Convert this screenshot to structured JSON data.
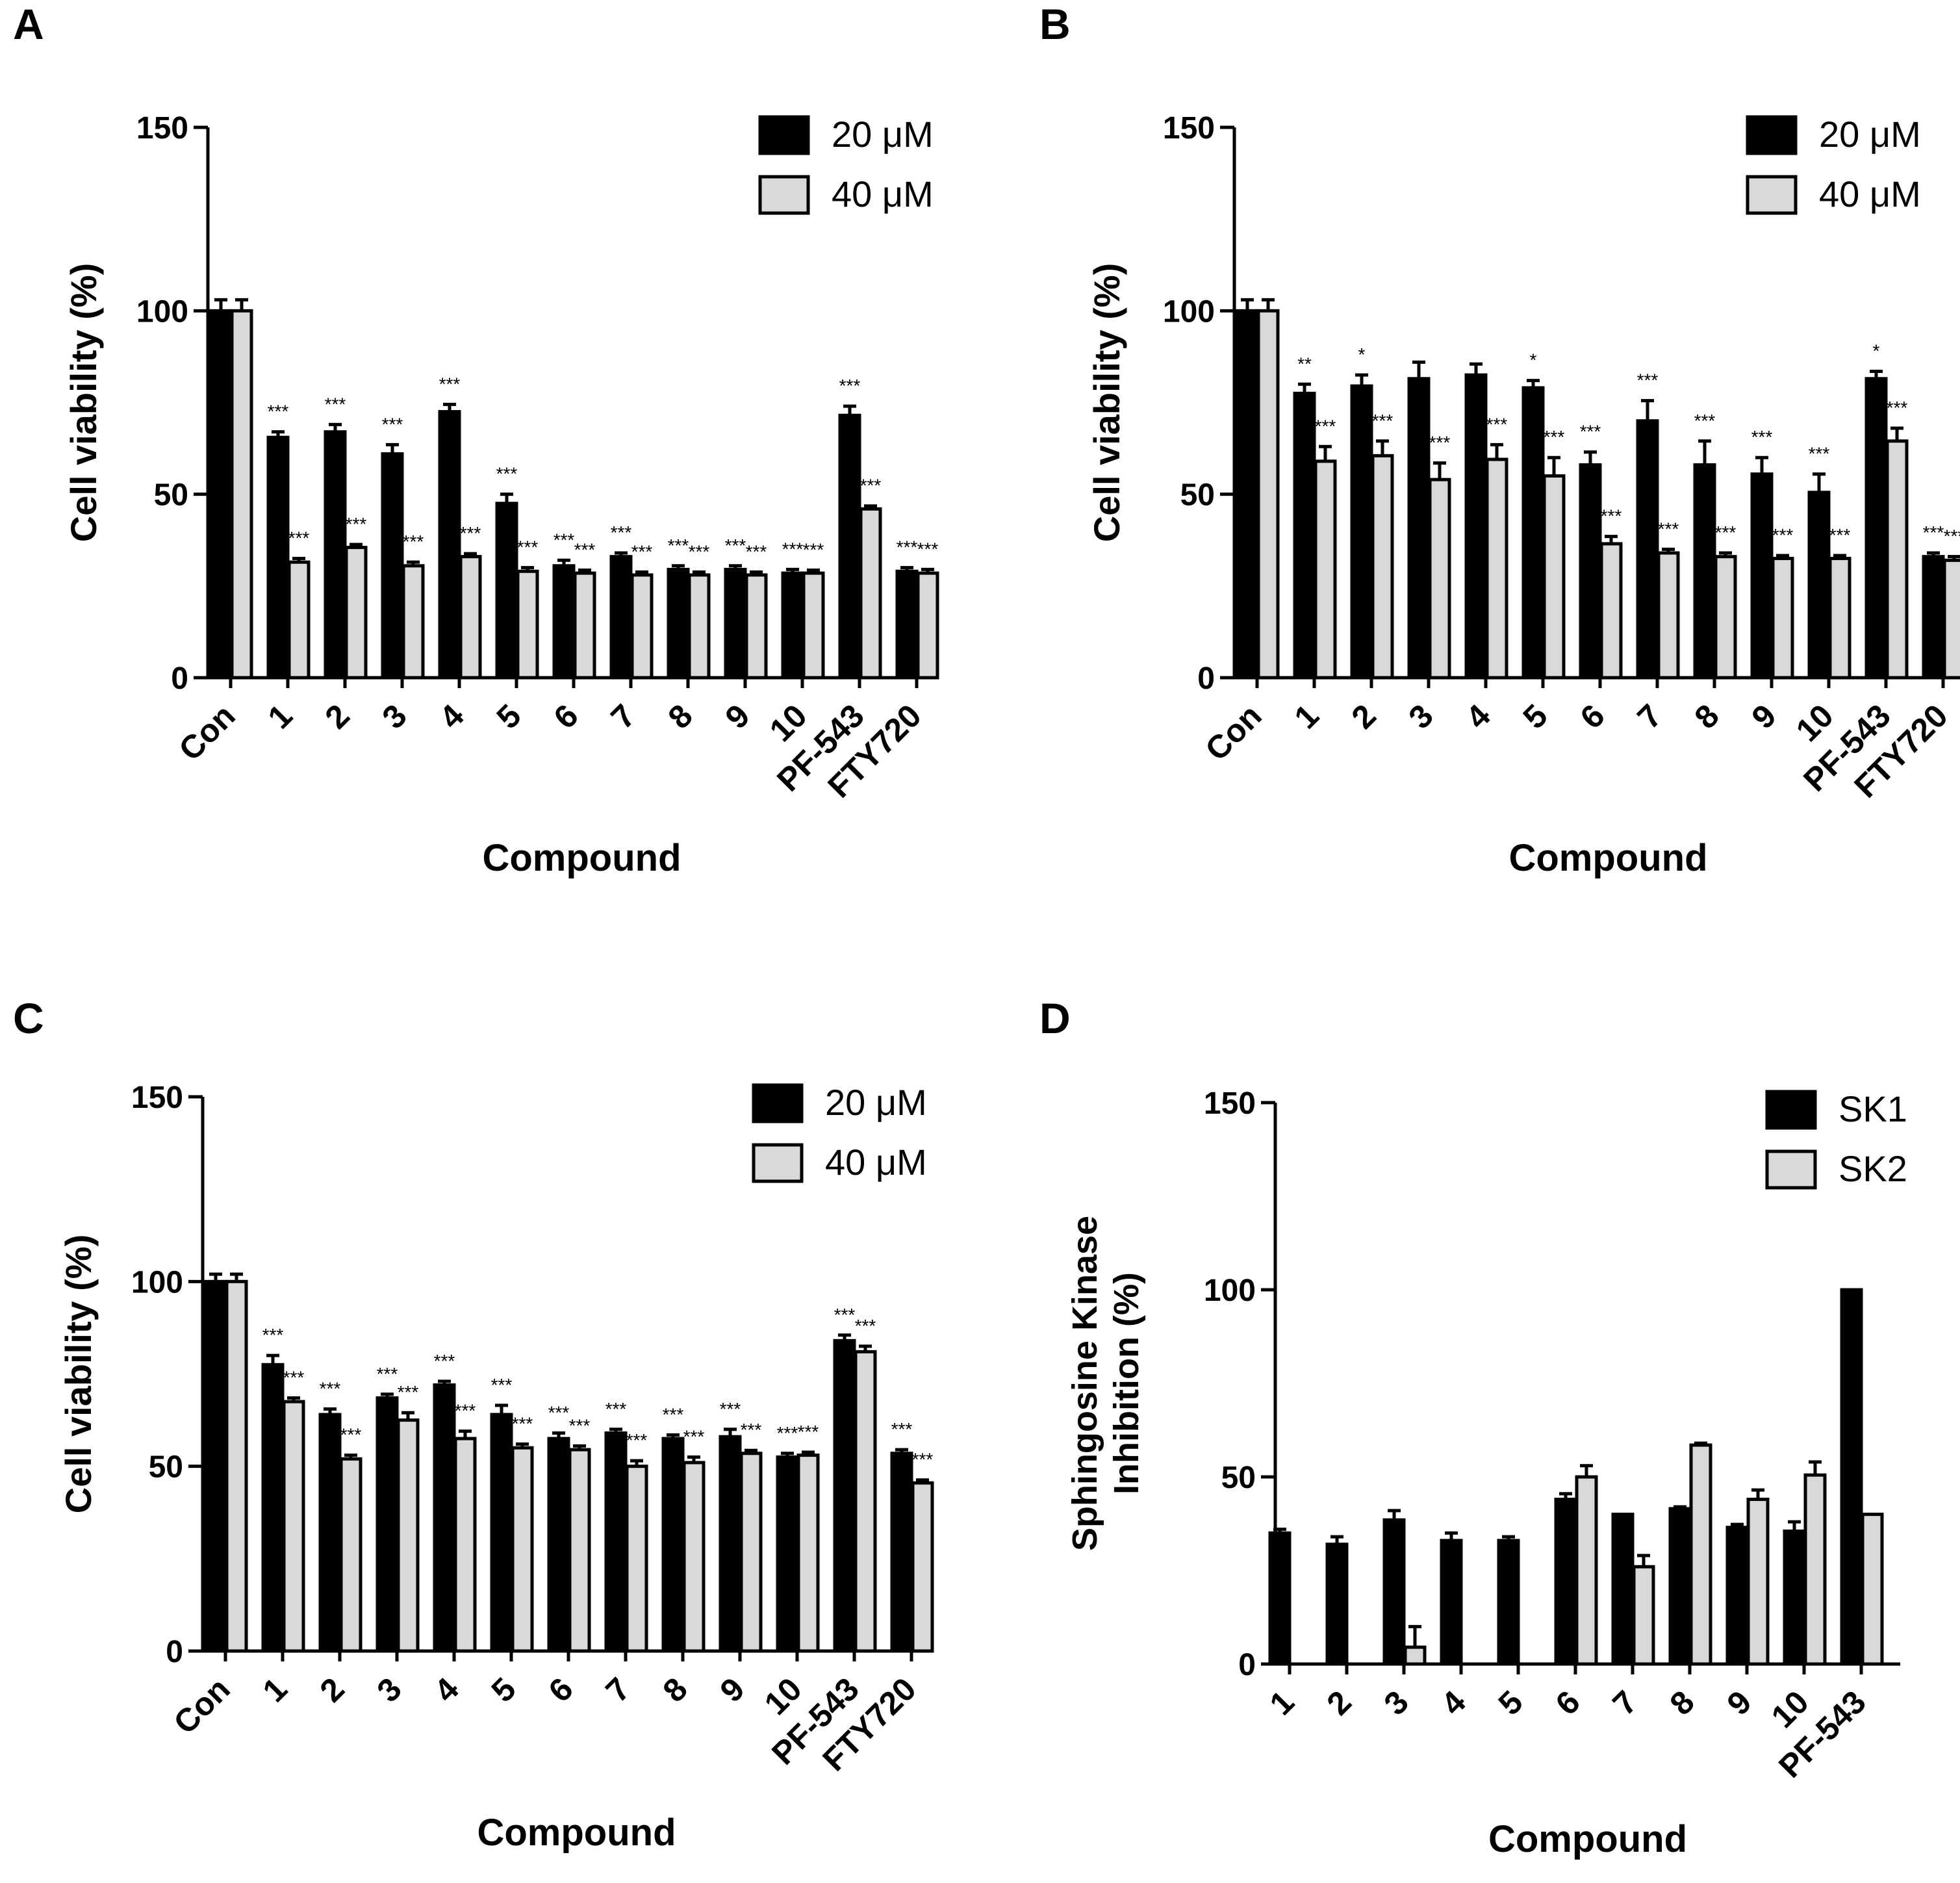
{
  "figure": {
    "colors": {
      "dose1": "#000000",
      "dose2": "#d9d9d9",
      "stroke": "#000000"
    }
  },
  "chart_data": [
    {
      "panel": "A",
      "type": "bar",
      "title": "",
      "xlabel": "Compound",
      "ylabel": "Cell viability (%)",
      "ylim": [
        0,
        150
      ],
      "yticks": [
        "0",
        "50",
        "100",
        "150"
      ],
      "categories": [
        "Con",
        "1",
        "2",
        "3",
        "4",
        "5",
        "6",
        "7",
        "8",
        "9",
        "10",
        "PF-543",
        "FTY720"
      ],
      "legend_position": "top-right",
      "series": [
        {
          "name": "20 μM",
          "values": [
            100,
            65.5,
            67,
            61,
            72.5,
            47.5,
            30.5,
            33,
            29.5,
            29.5,
            28.5,
            71.5,
            29
          ],
          "errors": [
            3,
            1.5,
            2,
            2.5,
            2,
            2.5,
            1.5,
            1,
            1,
            1,
            1,
            2.5,
            1
          ],
          "sig": [
            "",
            "***",
            "***",
            "***",
            "***",
            "***",
            "***",
            "***",
            "***",
            "***",
            "***",
            "***",
            "***"
          ]
        },
        {
          "name": "40 μM",
          "values": [
            100,
            31.5,
            35.5,
            30.5,
            33,
            29,
            28.5,
            28,
            28,
            28,
            28.5,
            46,
            28.5
          ],
          "errors": [
            3,
            1,
            0.8,
            1,
            0.8,
            1,
            0.8,
            0.8,
            0.8,
            0.8,
            0.8,
            0.8,
            1
          ],
          "sig": [
            "",
            "***",
            "***",
            "***",
            "***",
            "***",
            "***",
            "***",
            "***",
            "***",
            "***",
            "***",
            "***"
          ]
        }
      ]
    },
    {
      "panel": "B",
      "type": "bar",
      "title": "",
      "xlabel": "Compound",
      "ylabel": "Cell viability (%)",
      "ylim": [
        0,
        150
      ],
      "yticks": [
        "0",
        "50",
        "100",
        "150"
      ],
      "categories": [
        "Con",
        "1",
        "2",
        "3",
        "4",
        "5",
        "6",
        "7",
        "8",
        "9",
        "10",
        "PF-543",
        "FTY720"
      ],
      "legend_position": "top-right",
      "series": [
        {
          "name": "20 μM",
          "values": [
            100,
            77.5,
            79.5,
            81.5,
            82.5,
            79,
            58,
            70,
            58,
            55.5,
            50.5,
            81.5,
            33
          ],
          "errors": [
            3,
            2.5,
            3,
            4.5,
            3,
            2,
            3.5,
            5.5,
            6.5,
            4.5,
            5,
            2,
            1
          ],
          "sig": [
            "",
            "**",
            "*",
            "",
            "",
            "*",
            "***",
            "***",
            "***",
            "***",
            "***",
            "*",
            "***"
          ]
        },
        {
          "name": "40 μM",
          "values": [
            100,
            59,
            60.5,
            54,
            59.5,
            55,
            36.5,
            34,
            33,
            32.5,
            32.5,
            64.5,
            32
          ],
          "errors": [
            3,
            4,
            4,
            4.5,
            4,
            5,
            2,
            1,
            1,
            0.8,
            0.8,
            3.5,
            1
          ],
          "sig": [
            "",
            "***",
            "***",
            "***",
            "***",
            "***",
            "***",
            "***",
            "***",
            "***",
            "***",
            "***",
            "***"
          ]
        }
      ]
    },
    {
      "panel": "C",
      "type": "bar",
      "title": "",
      "xlabel": "Compound",
      "ylabel": "Cell viability (%)",
      "ylim": [
        0,
        150
      ],
      "yticks": [
        "0",
        "50",
        "100",
        "150"
      ],
      "categories": [
        "Con",
        "1",
        "2",
        "3",
        "4",
        "5",
        "6",
        "7",
        "8",
        "9",
        "10",
        "PF-543",
        "FTY720"
      ],
      "legend_position": "top-right",
      "series": [
        {
          "name": "20 μM",
          "values": [
            100,
            77.5,
            64,
            68.5,
            72,
            64,
            57.5,
            59,
            57.5,
            58,
            52.5,
            84,
            53.5
          ],
          "errors": [
            2,
            2.5,
            1.5,
            1,
            1,
            2.5,
            1.5,
            1,
            1,
            2,
            1,
            1.5,
            1
          ],
          "sig": [
            "",
            "***",
            "***",
            "***",
            "***",
            "***",
            "***",
            "***",
            "***",
            "***",
            "***",
            "***",
            "***"
          ]
        },
        {
          "name": "40 μM",
          "values": [
            100,
            67.5,
            52,
            62.5,
            57.5,
            55,
            54.5,
            50,
            51,
            53.5,
            53,
            81,
            45.5
          ],
          "errors": [
            2,
            1,
            1,
            2,
            2,
            1,
            1,
            1.5,
            1.5,
            0.8,
            0.8,
            1.5,
            0.8
          ],
          "sig": [
            "",
            "***",
            "***",
            "***",
            "***",
            "***",
            "***",
            "***",
            "***",
            "***",
            "***",
            "***",
            "***"
          ]
        }
      ]
    },
    {
      "panel": "D",
      "type": "bar",
      "title": "",
      "xlabel": "Compound",
      "ylabel": [
        "Sphingosine Kinase",
        "Inhibition (%)"
      ],
      "ylim": [
        0,
        150
      ],
      "yticks": [
        "0",
        "50",
        "100",
        "150"
      ],
      "categories": [
        "1",
        "2",
        "3",
        "4",
        "5",
        "6",
        "7",
        "8",
        "9",
        "10",
        "PF-543"
      ],
      "legend_position": "top-right",
      "series": [
        {
          "name": "SK1",
          "values": [
            35,
            32,
            38.5,
            33,
            33,
            44,
            40,
            41.5,
            36.5,
            35.5,
            100
          ],
          "errors": [
            1,
            2,
            2.5,
            2,
            1,
            1.5,
            0,
            0.5,
            0.8,
            2.5,
            0
          ],
          "sig": [
            "",
            "",
            "",
            "",
            "",
            "",
            "",
            "",
            "",
            "",
            ""
          ]
        },
        {
          "name": "SK2",
          "values": [
            0,
            0,
            4.5,
            0,
            0,
            50,
            26,
            58.5,
            44,
            50.5,
            40
          ],
          "errors": [
            0,
            0,
            5.5,
            0,
            0,
            3,
            3,
            0.5,
            2.5,
            3.5,
            0
          ],
          "sig": [
            "",
            "",
            "",
            "",
            "",
            "",
            "",
            "",
            "",
            "",
            ""
          ]
        }
      ]
    }
  ]
}
